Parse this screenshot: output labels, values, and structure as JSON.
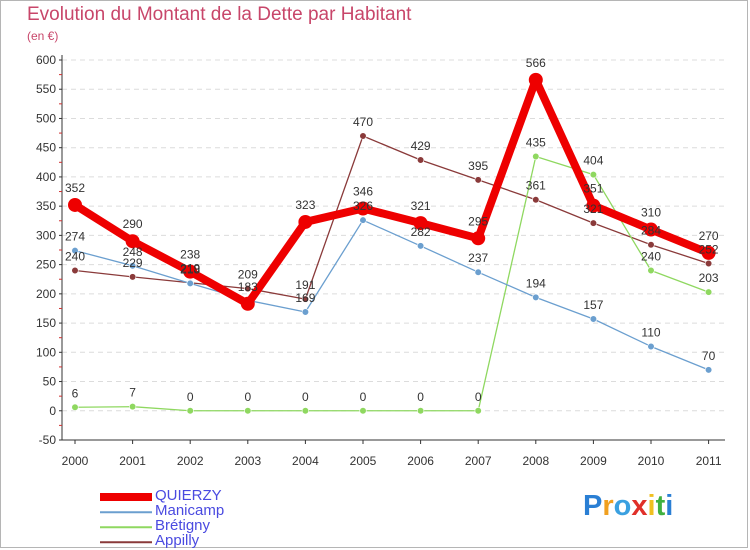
{
  "title": "Evolution du Montant de la Dette par Habitant",
  "unit": "(en €)",
  "logo": {
    "letters": [
      "P",
      "r",
      "o",
      "x",
      "i",
      "t",
      "i"
    ],
    "colors": [
      "#2a7fd4",
      "#f0a020",
      "#3aa0e0",
      "#e0302a",
      "#f0c020",
      "#40b040",
      "#2a7fd4"
    ]
  },
  "chart_data": {
    "type": "line",
    "categories": [
      "2000",
      "2001",
      "2002",
      "2003",
      "2004",
      "2005",
      "2006",
      "2007",
      "2008",
      "2009",
      "2010",
      "2011"
    ],
    "ylim": [
      -50,
      600
    ],
    "yticks": [
      -50,
      0,
      50,
      100,
      150,
      200,
      250,
      300,
      350,
      400,
      450,
      500,
      550,
      600
    ],
    "grid": "horizontal",
    "legend_position": "bottom-left",
    "series": [
      {
        "name": "QUIERZY",
        "color": "#ee0000",
        "width": 8,
        "values": [
          352,
          290,
          238,
          183,
          323,
          346,
          321,
          295,
          566,
          351,
          310,
          270
        ]
      },
      {
        "name": "Manicamp",
        "color": "#6b9fcf",
        "width": 1.3,
        "values": [
          274,
          248,
          218,
          189,
          169,
          326,
          282,
          237,
          194,
          157,
          110,
          70
        ]
      },
      {
        "name": "Brétigny",
        "color": "#8fd860",
        "width": 1.3,
        "values": [
          6,
          7,
          0,
          0,
          0,
          0,
          0,
          0,
          435,
          404,
          240,
          203
        ]
      },
      {
        "name": "Appilly",
        "color": "#8a3a3a",
        "width": 1.3,
        "values": [
          240,
          229,
          219,
          209,
          191,
          470,
          429,
          395,
          361,
          321,
          284,
          252
        ]
      }
    ],
    "data_labels": [
      [
        "352",
        "290",
        "238",
        "183",
        "323",
        "346",
        "321",
        "295",
        "566",
        "351",
        "310",
        "270"
      ],
      [
        "274",
        "248",
        "218",
        "",
        "169",
        "326",
        "282",
        "237",
        "194",
        "157",
        "110",
        "70"
      ],
      [
        "6",
        "7",
        "0",
        "0",
        "0",
        "0",
        "0",
        "0",
        "435",
        "404",
        "240",
        "203"
      ],
      [
        "240",
        "229",
        "219",
        "209",
        "191",
        "470",
        "429",
        "395",
        "361",
        "321",
        "284",
        "252"
      ]
    ]
  }
}
